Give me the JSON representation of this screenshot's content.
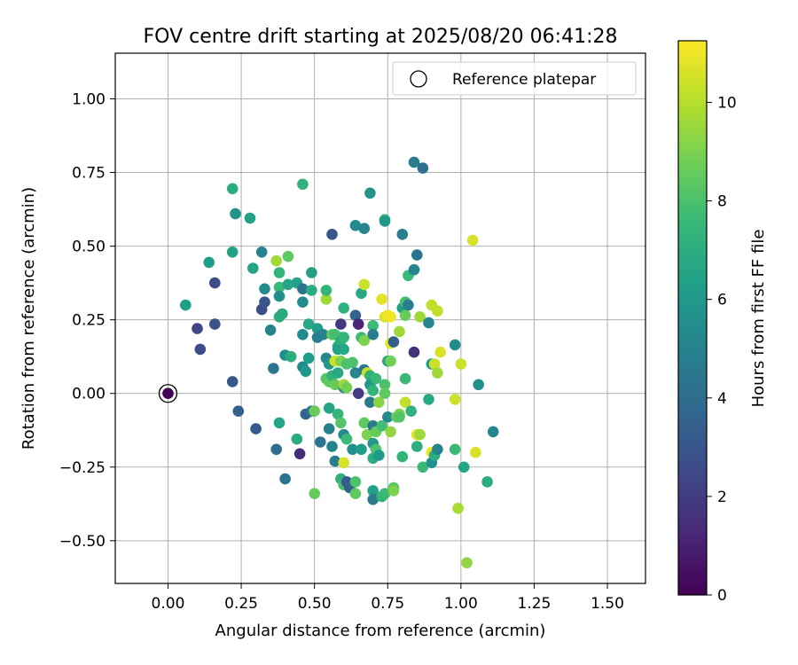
{
  "chart_data": {
    "type": "scatter",
    "title": "FOV centre drift starting at 2025/08/20 06:41:28",
    "xlabel": "Angular distance from reference (arcmin)",
    "ylabel": "Rotation from reference (arcmin)",
    "xlim": [
      -0.18,
      1.63
    ],
    "ylim": [
      -0.645,
      1.155
    ],
    "xticks": [
      0.0,
      0.25,
      0.5,
      0.75,
      1.0,
      1.25,
      1.5
    ],
    "xtick_labels": [
      "0.00",
      "0.25",
      "0.50",
      "0.75",
      "1.00",
      "1.25",
      "1.50"
    ],
    "yticks": [
      -0.5,
      -0.25,
      0.0,
      0.25,
      0.5,
      0.75,
      1.0
    ],
    "ytick_labels": [
      "−0.50",
      "−0.25",
      "0.00",
      "0.25",
      "0.50",
      "0.75",
      "1.00"
    ],
    "grid": true,
    "legend": {
      "placement": "top-right",
      "label": "Reference platepar"
    },
    "reference_point": {
      "x": 0.0,
      "y": 0.0
    },
    "colorbar": {
      "label": "Hours from first FF file",
      "colormap": "viridis",
      "range": [
        0,
        11.25
      ],
      "ticks": [
        0,
        2,
        4,
        6,
        8,
        10
      ],
      "tick_labels": [
        "0",
        "2",
        "4",
        "6",
        "8",
        "10"
      ]
    },
    "points": [
      {
        "x": 0.0,
        "y": 0.0,
        "c": 0.0
      },
      {
        "x": 0.06,
        "y": 0.3,
        "c": 6.3
      },
      {
        "x": 0.1,
        "y": 0.22,
        "c": 2.3
      },
      {
        "x": 0.11,
        "y": 0.15,
        "c": 2.5
      },
      {
        "x": 0.14,
        "y": 0.445,
        "c": 6.2
      },
      {
        "x": 0.16,
        "y": 0.375,
        "c": 2.6
      },
      {
        "x": 0.16,
        "y": 0.235,
        "c": 2.9
      },
      {
        "x": 0.22,
        "y": 0.695,
        "c": 7.0
      },
      {
        "x": 0.22,
        "y": 0.48,
        "c": 6.4
      },
      {
        "x": 0.23,
        "y": 0.61,
        "c": 5.8
      },
      {
        "x": 0.22,
        "y": 0.04,
        "c": 3.1
      },
      {
        "x": 0.24,
        "y": -0.06,
        "c": 3.4
      },
      {
        "x": 0.28,
        "y": 0.595,
        "c": 6.4
      },
      {
        "x": 0.29,
        "y": 0.425,
        "c": 6.6
      },
      {
        "x": 0.3,
        "y": -0.12,
        "c": 3.2
      },
      {
        "x": 0.32,
        "y": 0.48,
        "c": 5.0
      },
      {
        "x": 0.32,
        "y": 0.285,
        "c": 2.7
      },
      {
        "x": 0.33,
        "y": 0.31,
        "c": 3.0
      },
      {
        "x": 0.33,
        "y": 0.355,
        "c": 5.4
      },
      {
        "x": 0.35,
        "y": 0.215,
        "c": 5.0
      },
      {
        "x": 0.36,
        "y": 0.085,
        "c": 4.4
      },
      {
        "x": 0.37,
        "y": 0.45,
        "c": 9.6
      },
      {
        "x": 0.37,
        "y": -0.19,
        "c": 4.0
      },
      {
        "x": 0.38,
        "y": 0.41,
        "c": 7.4
      },
      {
        "x": 0.38,
        "y": 0.36,
        "c": 7.6
      },
      {
        "x": 0.38,
        "y": 0.33,
        "c": 5.6
      },
      {
        "x": 0.38,
        "y": 0.26,
        "c": 7.0
      },
      {
        "x": 0.38,
        "y": -0.1,
        "c": 6.6
      },
      {
        "x": 0.39,
        "y": 0.27,
        "c": 6.8
      },
      {
        "x": 0.4,
        "y": 0.13,
        "c": 5.6
      },
      {
        "x": 0.4,
        "y": -0.29,
        "c": 4.3
      },
      {
        "x": 0.41,
        "y": 0.465,
        "c": 8.4
      },
      {
        "x": 0.41,
        "y": 0.37,
        "c": 6.6
      },
      {
        "x": 0.42,
        "y": 0.125,
        "c": 7.0
      },
      {
        "x": 0.44,
        "y": 0.375,
        "c": 6.4
      },
      {
        "x": 0.44,
        "y": -0.155,
        "c": 6.9
      },
      {
        "x": 0.45,
        "y": -0.205,
        "c": 1.4
      },
      {
        "x": 0.46,
        "y": 0.71,
        "c": 7.2
      },
      {
        "x": 0.46,
        "y": 0.355,
        "c": 4.4
      },
      {
        "x": 0.46,
        "y": 0.31,
        "c": 5.4
      },
      {
        "x": 0.46,
        "y": 0.2,
        "c": 5.4
      },
      {
        "x": 0.46,
        "y": 0.09,
        "c": 5.4
      },
      {
        "x": 0.47,
        "y": 0.075,
        "c": 6.0
      },
      {
        "x": 0.47,
        "y": -0.07,
        "c": 3.6
      },
      {
        "x": 0.48,
        "y": 0.235,
        "c": 6.7
      },
      {
        "x": 0.48,
        "y": 0.12,
        "c": 6.2
      },
      {
        "x": 0.49,
        "y": 0.41,
        "c": 6.4
      },
      {
        "x": 0.49,
        "y": 0.35,
        "c": 7.0
      },
      {
        "x": 0.49,
        "y": -0.06,
        "c": 4.2
      },
      {
        "x": 0.5,
        "y": -0.34,
        "c": 8.6
      },
      {
        "x": 0.5,
        "y": -0.06,
        "c": 8.6
      },
      {
        "x": 0.51,
        "y": 0.22,
        "c": 6.2
      },
      {
        "x": 0.51,
        "y": 0.19,
        "c": 4.8
      },
      {
        "x": 0.52,
        "y": -0.165,
        "c": 4.4
      },
      {
        "x": 0.53,
        "y": 0.2,
        "c": 5.0
      },
      {
        "x": 0.54,
        "y": 0.32,
        "c": 9.6
      },
      {
        "x": 0.54,
        "y": 0.35,
        "c": 7.4
      },
      {
        "x": 0.54,
        "y": 0.12,
        "c": 5.2
      },
      {
        "x": 0.54,
        "y": 0.05,
        "c": 8.2
      },
      {
        "x": 0.55,
        "y": 0.1,
        "c": 6.0
      },
      {
        "x": 0.55,
        "y": 0.04,
        "c": 8.4
      },
      {
        "x": 0.55,
        "y": -0.12,
        "c": 5.0
      },
      {
        "x": 0.55,
        "y": -0.05,
        "c": 6.6
      },
      {
        "x": 0.56,
        "y": 0.54,
        "c": 3.0
      },
      {
        "x": 0.56,
        "y": 0.2,
        "c": 8.5
      },
      {
        "x": 0.56,
        "y": 0.06,
        "c": 7.2
      },
      {
        "x": 0.56,
        "y": -0.18,
        "c": 5.0
      },
      {
        "x": 0.57,
        "y": 0.2,
        "c": 7.8
      },
      {
        "x": 0.57,
        "y": 0.11,
        "c": 10.4
      },
      {
        "x": 0.57,
        "y": 0.03,
        "c": 8.6
      },
      {
        "x": 0.57,
        "y": -0.23,
        "c": 4.8
      },
      {
        "x": 0.58,
        "y": 0.16,
        "c": 7.0
      },
      {
        "x": 0.58,
        "y": 0.15,
        "c": 6.4
      },
      {
        "x": 0.58,
        "y": 0.07,
        "c": 6.8
      },
      {
        "x": 0.58,
        "y": -0.07,
        "c": 7.4
      },
      {
        "x": 0.59,
        "y": 0.235,
        "c": 1.8
      },
      {
        "x": 0.59,
        "y": 0.19,
        "c": 8.0
      },
      {
        "x": 0.59,
        "y": 0.18,
        "c": 7.0
      },
      {
        "x": 0.59,
        "y": 0.11,
        "c": 9.0
      },
      {
        "x": 0.59,
        "y": -0.1,
        "c": 8.2
      },
      {
        "x": 0.59,
        "y": -0.29,
        "c": 7.2
      },
      {
        "x": 0.6,
        "y": 0.29,
        "c": 7.2
      },
      {
        "x": 0.6,
        "y": 0.19,
        "c": 7.4
      },
      {
        "x": 0.6,
        "y": 0.02,
        "c": 5.2
      },
      {
        "x": 0.6,
        "y": 0.15,
        "c": 6.7
      },
      {
        "x": 0.6,
        "y": 0.03,
        "c": 9.6
      },
      {
        "x": 0.6,
        "y": -0.14,
        "c": 5.3
      },
      {
        "x": 0.6,
        "y": -0.235,
        "c": 10.6
      },
      {
        "x": 0.6,
        "y": -0.31,
        "c": 7.8
      },
      {
        "x": 0.61,
        "y": 0.1,
        "c": 8.0
      },
      {
        "x": 0.61,
        "y": 0.02,
        "c": 8.8
      },
      {
        "x": 0.61,
        "y": -0.3,
        "c": 3.2
      },
      {
        "x": 0.61,
        "y": -0.155,
        "c": 7.6
      },
      {
        "x": 0.62,
        "y": -0.32,
        "c": 3.4
      },
      {
        "x": 0.63,
        "y": 0.105,
        "c": 8.0
      },
      {
        "x": 0.63,
        "y": -0.19,
        "c": 5.6
      },
      {
        "x": 0.64,
        "y": 0.57,
        "c": 5.4
      },
      {
        "x": 0.64,
        "y": 0.265,
        "c": 3.6
      },
      {
        "x": 0.64,
        "y": 0.07,
        "c": 5.2
      },
      {
        "x": 0.64,
        "y": -0.3,
        "c": 8.0
      },
      {
        "x": 0.64,
        "y": -0.34,
        "c": 8.4
      },
      {
        "x": 0.65,
        "y": 0.235,
        "c": 1.2
      },
      {
        "x": 0.65,
        "y": 0.0,
        "c": 2.0
      },
      {
        "x": 0.66,
        "y": 0.34,
        "c": 6.8
      },
      {
        "x": 0.66,
        "y": 0.19,
        "c": 7.6
      },
      {
        "x": 0.66,
        "y": -0.19,
        "c": 6.2
      },
      {
        "x": 0.67,
        "y": 0.37,
        "c": 10.4
      },
      {
        "x": 0.67,
        "y": 0.56,
        "c": 5.2
      },
      {
        "x": 0.67,
        "y": 0.08,
        "c": 4.4
      },
      {
        "x": 0.67,
        "y": 0.18,
        "c": 9.0
      },
      {
        "x": 0.67,
        "y": -0.1,
        "c": 8.4
      },
      {
        "x": 0.68,
        "y": 0.07,
        "c": 10.4
      },
      {
        "x": 0.68,
        "y": -0.14,
        "c": 9.0
      },
      {
        "x": 0.69,
        "y": 0.68,
        "c": 5.8
      },
      {
        "x": 0.69,
        "y": 0.06,
        "c": 7.2
      },
      {
        "x": 0.69,
        "y": 0.03,
        "c": 6.0
      },
      {
        "x": 0.69,
        "y": -0.03,
        "c": 4.6
      },
      {
        "x": 0.7,
        "y": 0.23,
        "c": 7.6
      },
      {
        "x": 0.7,
        "y": 0.2,
        "c": 4.8
      },
      {
        "x": 0.7,
        "y": 0.01,
        "c": 7.4
      },
      {
        "x": 0.7,
        "y": -0.11,
        "c": 4.6
      },
      {
        "x": 0.7,
        "y": -0.17,
        "c": 6.0
      },
      {
        "x": 0.7,
        "y": -0.22,
        "c": 7.0
      },
      {
        "x": 0.7,
        "y": -0.33,
        "c": 6.4
      },
      {
        "x": 0.7,
        "y": -0.36,
        "c": 4.6
      },
      {
        "x": 0.71,
        "y": 0.05,
        "c": 7.6
      },
      {
        "x": 0.71,
        "y": -0.13,
        "c": 8.6
      },
      {
        "x": 0.71,
        "y": -0.19,
        "c": 8.0
      },
      {
        "x": 0.72,
        "y": -0.03,
        "c": 9.2
      },
      {
        "x": 0.72,
        "y": -0.21,
        "c": 6.0
      },
      {
        "x": 0.73,
        "y": 0.32,
        "c": 10.8
      },
      {
        "x": 0.73,
        "y": -0.11,
        "c": 7.8
      },
      {
        "x": 0.73,
        "y": -0.35,
        "c": 7.4
      },
      {
        "x": 0.74,
        "y": 0.59,
        "c": 7.6
      },
      {
        "x": 0.74,
        "y": 0.585,
        "c": 6.0
      },
      {
        "x": 0.74,
        "y": 0.26,
        "c": 10.6
      },
      {
        "x": 0.74,
        "y": 0.03,
        "c": 8.0
      },
      {
        "x": 0.74,
        "y": 0.0,
        "c": 8.4
      },
      {
        "x": 0.74,
        "y": -0.34,
        "c": 7.6
      },
      {
        "x": 0.75,
        "y": 0.265,
        "c": 11.0
      },
      {
        "x": 0.75,
        "y": 0.11,
        "c": 6.6
      },
      {
        "x": 0.75,
        "y": -0.08,
        "c": 5.4
      },
      {
        "x": 0.76,
        "y": 0.26,
        "c": 11.0
      },
      {
        "x": 0.76,
        "y": 0.17,
        "c": 10.8
      },
      {
        "x": 0.76,
        "y": 0.11,
        "c": 8.8
      },
      {
        "x": 0.76,
        "y": -0.13,
        "c": 9.4
      },
      {
        "x": 0.77,
        "y": 0.175,
        "c": 3.4
      },
      {
        "x": 0.77,
        "y": -0.32,
        "c": 8.2
      },
      {
        "x": 0.77,
        "y": -0.33,
        "c": 9.0
      },
      {
        "x": 0.78,
        "y": -0.08,
        "c": 8.6
      },
      {
        "x": 0.79,
        "y": 0.21,
        "c": 9.6
      },
      {
        "x": 0.79,
        "y": -0.07,
        "c": 9.0
      },
      {
        "x": 0.79,
        "y": -0.08,
        "c": 8.2
      },
      {
        "x": 0.8,
        "y": 0.54,
        "c": 4.8
      },
      {
        "x": 0.8,
        "y": 0.29,
        "c": 6.4
      },
      {
        "x": 0.8,
        "y": -0.215,
        "c": 7.4
      },
      {
        "x": 0.81,
        "y": 0.265,
        "c": 8.6
      },
      {
        "x": 0.81,
        "y": 0.31,
        "c": 7.8
      },
      {
        "x": 0.81,
        "y": 0.05,
        "c": 7.6
      },
      {
        "x": 0.81,
        "y": -0.03,
        "c": 10.2
      },
      {
        "x": 0.82,
        "y": 0.4,
        "c": 7.6
      },
      {
        "x": 0.82,
        "y": 0.3,
        "c": 4.8
      },
      {
        "x": 0.83,
        "y": -0.06,
        "c": 7.2
      },
      {
        "x": 0.84,
        "y": 0.785,
        "c": 4.8
      },
      {
        "x": 0.84,
        "y": 0.42,
        "c": 5.0
      },
      {
        "x": 0.84,
        "y": 0.14,
        "c": 1.6
      },
      {
        "x": 0.85,
        "y": 0.47,
        "c": 4.4
      },
      {
        "x": 0.85,
        "y": -0.14,
        "c": 10.8
      },
      {
        "x": 0.85,
        "y": -0.18,
        "c": 7.0
      },
      {
        "x": 0.86,
        "y": 0.26,
        "c": 9.6
      },
      {
        "x": 0.86,
        "y": -0.14,
        "c": 9.6
      },
      {
        "x": 0.87,
        "y": 0.765,
        "c": 4.2
      },
      {
        "x": 0.87,
        "y": -0.25,
        "c": 7.6
      },
      {
        "x": 0.89,
        "y": 0.24,
        "c": 5.2
      },
      {
        "x": 0.89,
        "y": -0.02,
        "c": 6.8
      },
      {
        "x": 0.9,
        "y": 0.3,
        "c": 10.2
      },
      {
        "x": 0.9,
        "y": 0.1,
        "c": 6.2
      },
      {
        "x": 0.9,
        "y": -0.2,
        "c": 11.0
      },
      {
        "x": 0.9,
        "y": -0.235,
        "c": 5.6
      },
      {
        "x": 0.91,
        "y": 0.1,
        "c": 10.4
      },
      {
        "x": 0.91,
        "y": -0.21,
        "c": 7.0
      },
      {
        "x": 0.92,
        "y": 0.28,
        "c": 10.2
      },
      {
        "x": 0.92,
        "y": 0.07,
        "c": 9.6
      },
      {
        "x": 0.92,
        "y": -0.19,
        "c": 5.0
      },
      {
        "x": 0.93,
        "y": 0.14,
        "c": 10.6
      },
      {
        "x": 0.98,
        "y": 0.165,
        "c": 5.4
      },
      {
        "x": 0.98,
        "y": -0.02,
        "c": 10.4
      },
      {
        "x": 0.98,
        "y": -0.19,
        "c": 7.6
      },
      {
        "x": 0.99,
        "y": -0.39,
        "c": 9.8
      },
      {
        "x": 1.0,
        "y": 0.1,
        "c": 10.4
      },
      {
        "x": 1.01,
        "y": -0.25,
        "c": 6.6
      },
      {
        "x": 1.02,
        "y": -0.575,
        "c": 9.4
      },
      {
        "x": 1.04,
        "y": 0.52,
        "c": 10.6
      },
      {
        "x": 1.05,
        "y": -0.2,
        "c": 10.6
      },
      {
        "x": 1.06,
        "y": 0.03,
        "c": 5.6
      },
      {
        "x": 1.09,
        "y": -0.3,
        "c": 7.0
      },
      {
        "x": 1.11,
        "y": -0.13,
        "c": 5.2
      }
    ]
  }
}
